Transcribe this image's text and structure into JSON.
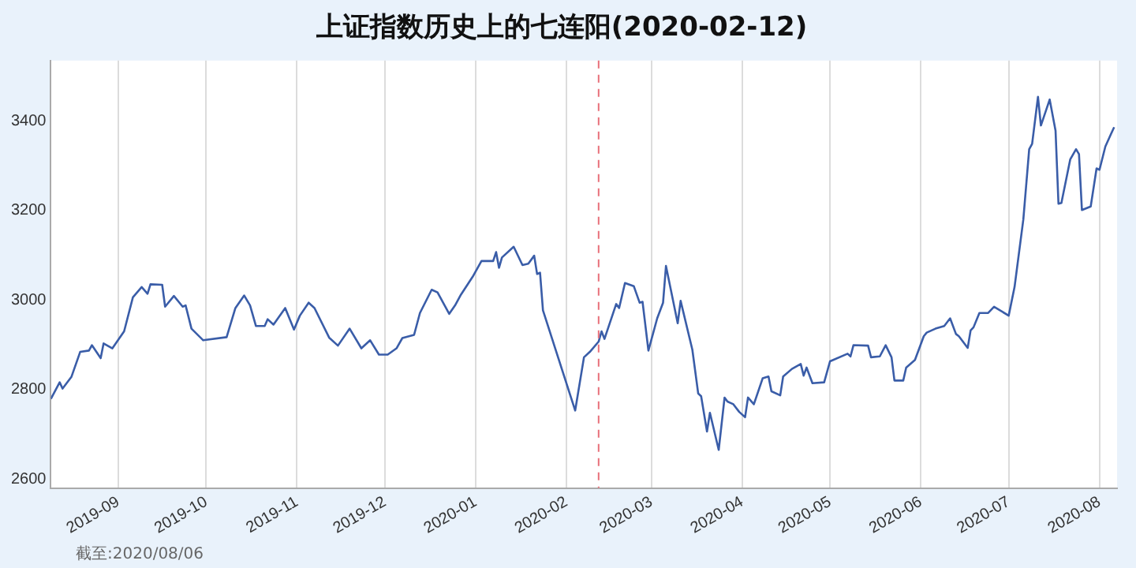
{
  "chart_data": {
    "type": "line",
    "title": "上证指数历史上的七连阳(2020-02-12)",
    "annotations": [
      "截至:2020/08/06"
    ],
    "xlim": [
      "2019-08-09",
      "2020-08-07"
    ],
    "ylim": [
      2580,
      3535
    ],
    "xticks": [
      "2019-09",
      "2019-10",
      "2019-11",
      "2019-12",
      "2020-01",
      "2020-02",
      "2020-03",
      "2020-04",
      "2020-05",
      "2020-06",
      "2020-07",
      "2020-08"
    ],
    "yticks": [
      2600,
      2800,
      3000,
      3200,
      3400
    ],
    "grid": "x",
    "legend": false,
    "marker": "none",
    "line_style": "solid",
    "ref_lines": [
      {
        "axis": "x",
        "value": "2020-02-12",
        "color": "#e8707a",
        "line_style": "dashed"
      }
    ],
    "series": [
      {
        "color": "#3a5da8",
        "x": [
          "2019-08-09",
          "2019-08-12",
          "2019-08-13",
          "2019-08-16",
          "2019-08-19",
          "2019-08-22",
          "2019-08-23",
          "2019-08-26",
          "2019-08-27",
          "2019-08-30",
          "2019-09-03",
          "2019-09-06",
          "2019-09-09",
          "2019-09-11",
          "2019-09-12",
          "2019-09-16",
          "2019-09-17",
          "2019-09-20",
          "2019-09-23",
          "2019-09-24",
          "2019-09-26",
          "2019-09-30",
          "2019-10-08",
          "2019-10-11",
          "2019-10-14",
          "2019-10-16",
          "2019-10-18",
          "2019-10-21",
          "2019-10-22",
          "2019-10-24",
          "2019-10-28",
          "2019-10-31",
          "2019-11-02",
          "2019-11-05",
          "2019-11-07",
          "2019-11-12",
          "2019-11-15",
          "2019-11-19",
          "2019-11-23",
          "2019-11-26",
          "2019-11-29",
          "2019-12-02",
          "2019-12-05",
          "2019-12-07",
          "2019-12-11",
          "2019-12-13",
          "2019-12-17",
          "2019-12-19",
          "2019-12-23",
          "2019-12-25",
          "2019-12-27",
          "2019-12-31",
          "2020-01-03",
          "2020-01-07",
          "2020-01-08",
          "2020-01-09",
          "2020-01-10",
          "2020-01-14",
          "2020-01-17",
          "2020-01-19",
          "2020-01-21",
          "2020-01-22",
          "2020-01-23",
          "2020-01-24",
          "2020-02-04",
          "2020-02-07",
          "2020-02-09",
          "2020-02-12",
          "2020-02-13",
          "2020-02-14",
          "2020-02-18",
          "2020-02-19",
          "2020-02-21",
          "2020-02-24",
          "2020-02-26",
          "2020-02-27",
          "2020-02-29",
          "2020-03-03",
          "2020-03-05",
          "2020-03-06",
          "2020-03-10",
          "2020-03-11",
          "2020-03-15",
          "2020-03-17",
          "2020-03-18",
          "2020-03-20",
          "2020-03-21",
          "2020-03-24",
          "2020-03-26",
          "2020-03-27",
          "2020-03-29",
          "2020-03-31",
          "2020-04-02",
          "2020-04-03",
          "2020-04-05",
          "2020-04-08",
          "2020-04-10",
          "2020-04-11",
          "2020-04-14",
          "2020-04-15",
          "2020-04-18",
          "2020-04-21",
          "2020-04-22",
          "2020-04-23",
          "2020-04-25",
          "2020-04-29",
          "2020-05-01",
          "2020-05-07",
          "2020-05-08",
          "2020-05-09",
          "2020-05-14",
          "2020-05-15",
          "2020-05-18",
          "2020-05-20",
          "2020-05-22",
          "2020-05-23",
          "2020-05-26",
          "2020-05-27",
          "2020-05-30",
          "2020-06-02",
          "2020-06-03",
          "2020-06-06",
          "2020-06-09",
          "2020-06-11",
          "2020-06-13",
          "2020-06-14",
          "2020-06-17",
          "2020-06-18",
          "2020-06-19",
          "2020-06-21",
          "2020-06-24",
          "2020-06-26",
          "2020-07-01",
          "2020-07-03",
          "2020-07-06",
          "2020-07-08",
          "2020-07-09",
          "2020-07-11",
          "2020-07-12",
          "2020-07-15",
          "2020-07-17",
          "2020-07-18",
          "2020-07-19",
          "2020-07-22",
          "2020-07-24",
          "2020-07-25",
          "2020-07-26",
          "2020-07-29",
          "2020-07-31",
          "2020-08-01",
          "2020-08-03",
          "2020-08-05",
          "2020-08-06"
        ],
        "values": [
          2779,
          2816,
          2802,
          2828,
          2884,
          2887,
          2899,
          2870,
          2903,
          2892,
          2930,
          3006,
          3029,
          3014,
          3035,
          3034,
          2985,
          3009,
          2985,
          2988,
          2936,
          2910,
          2917,
          2982,
          3010,
          2988,
          2942,
          2942,
          2957,
          2945,
          2982,
          2934,
          2965,
          2994,
          2982,
          2916,
          2898,
          2936,
          2892,
          2910,
          2878,
          2878,
          2892,
          2915,
          2922,
          2971,
          3023,
          3017,
          2969,
          2988,
          3012,
          3052,
          3087,
          3087,
          3107,
          3072,
          3095,
          3119,
          3078,
          3081,
          3099,
          3058,
          3061,
          2977,
          2753,
          2872,
          2884,
          2907,
          2930,
          2913,
          2991,
          2982,
          3038,
          3031,
          2994,
          2996,
          2887,
          2959,
          2994,
          3076,
          2948,
          2998,
          2889,
          2791,
          2785,
          2706,
          2748,
          2665,
          2782,
          2773,
          2767,
          2750,
          2738,
          2782,
          2767,
          2825,
          2829,
          2796,
          2787,
          2829,
          2846,
          2857,
          2831,
          2849,
          2814,
          2816,
          2863,
          2880,
          2874,
          2899,
          2898,
          2872,
          2874,
          2899,
          2872,
          2820,
          2820,
          2849,
          2866,
          2919,
          2927,
          2936,
          2942,
          2959,
          2924,
          2919,
          2893,
          2932,
          2939,
          2971,
          2971,
          2985,
          2965,
          3029,
          3180,
          3337,
          3349,
          3454,
          3390,
          3448,
          3378,
          3215,
          3217,
          3314,
          3337,
          3326,
          3201,
          3209,
          3294,
          3291,
          3343,
          3372,
          3386
        ]
      }
    ]
  }
}
